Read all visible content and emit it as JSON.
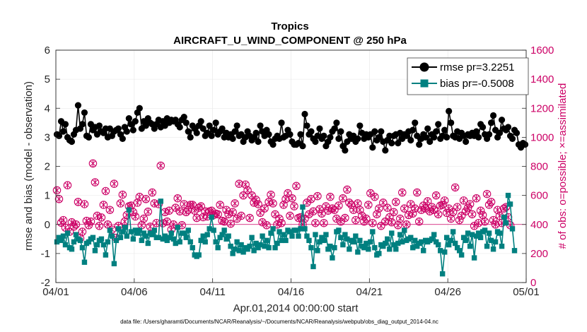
{
  "chart_data": {
    "type": "line",
    "title": "Tropics",
    "subtitle": "AIRCRAFT_U_WIND_COMPONENT @ 250 hPa",
    "xlabel": "Apr.01,2014 00:00:00 start",
    "ylabel_left": "rmse and bias (model - observation)",
    "ylabel_right": "# of obs: o=possible; ×=assimilated",
    "footnote": "data file: /Users/gharamti/Documents/NCAR/Reanalysis/~/Documents/NCAR/Reanalysis/webpub/obs_diag_output_2014-04.nc",
    "x_ticks": [
      "04/01",
      "04/06",
      "04/11",
      "04/16",
      "04/21",
      "04/26",
      "05/01"
    ],
    "x_range_days": [
      0,
      30
    ],
    "ylim_left": [
      -2,
      6
    ],
    "y_ticks_left": [
      "-2",
      "-1",
      "0",
      "1",
      "2",
      "3",
      "4",
      "5",
      "6"
    ],
    "ylim_right": [
      0,
      1600
    ],
    "y_ticks_right": [
      "0",
      "200",
      "400",
      "600",
      "800",
      "1000",
      "1200",
      "1400",
      "1600"
    ],
    "grid": true,
    "legend_position": "top-right",
    "colors": {
      "rmse": "#000000",
      "bias": "#008080",
      "obs": "#cc0066",
      "zero_line": "#cc0066"
    },
    "series": [
      {
        "name": "rmse",
        "legend": "rmse pr=3.2251",
        "values": [
          3.1,
          3.05,
          3.55,
          3.2,
          3.45,
          3.0,
          2.9,
          2.85,
          3.1,
          3.25,
          4.1,
          3.3,
          3.45,
          3.85,
          3.05,
          3.0,
          3.45,
          3.25,
          3.35,
          3.1,
          3.4,
          3.2,
          3.15,
          3.3,
          3.0,
          3.3,
          3.05,
          3.2,
          3.25,
          3.3,
          3.1,
          2.95,
          3.35,
          3.2,
          3.65,
          3.45,
          3.25,
          3.55,
          3.85,
          4.0,
          3.3,
          3.55,
          3.4,
          3.65,
          3.5,
          3.45,
          3.3,
          3.45,
          3.6,
          3.35,
          3.55,
          3.4,
          3.65,
          3.5,
          3.6,
          3.55,
          3.6,
          3.45,
          3.35,
          3.6,
          3.7,
          3.5,
          3.2,
          3.0,
          3.4,
          3.3,
          3.15,
          3.4,
          3.55,
          3.3,
          3.05,
          3.15,
          3.4,
          3.05,
          3.25,
          3.5,
          3.1,
          3.2,
          3.3,
          3.0,
          3.15,
          3.0,
          3.1,
          2.95,
          3.2,
          3.4,
          3.05,
          3.1,
          2.85,
          3.0,
          3.2,
          3.05,
          2.9,
          3.0,
          3.15,
          2.85,
          3.4,
          3.2,
          3.05,
          3.25,
          3.1,
          2.85,
          2.75,
          2.95,
          3.05,
          2.95,
          3.5,
          3.0,
          3.05,
          3.25,
          3.1,
          2.85,
          2.75,
          2.75,
          2.8,
          3.1,
          2.7,
          3.8,
          3.4,
          3.1,
          3.2,
          2.95,
          2.85,
          3.05,
          3.3,
          2.95,
          3.05,
          2.7,
          2.85,
          3.0,
          3.2,
          3.3,
          3.5,
          2.95,
          3.2,
          2.7,
          2.55,
          2.85,
          3.1,
          2.95,
          3.05,
          2.85,
          2.95,
          3.4,
          3.15,
          2.95,
          3.1,
          3.0,
          3.1,
          2.65,
          3.2,
          2.9,
          3.0,
          3.2,
          2.85,
          2.55,
          2.9,
          3.05,
          2.8,
          3.05,
          3.1,
          2.8,
          3.15,
          2.95,
          3.1,
          3.05,
          3.2,
          2.9,
          3.25,
          3.5,
          3.05,
          2.75,
          2.95,
          3.1,
          3.0,
          3.3,
          2.85,
          3.1,
          3.0,
          3.2,
          3.45,
          2.95,
          3.05,
          3.25,
          3.0,
          3.9,
          3.5,
          3.05,
          3.0,
          3.2,
          2.95,
          3.15,
          3.05,
          2.85,
          3.1,
          3.05,
          3.15,
          3.05,
          3.2,
          3.0,
          3.45,
          3.35,
          3.1,
          2.95,
          3.1,
          3.5,
          3.75,
          3.25,
          3.0,
          3.15,
          3.6,
          3.3,
          3.25,
          3.35,
          3.05,
          2.95,
          3.25,
          3.15,
          2.75,
          2.65,
          2.8,
          2.75
        ]
      },
      {
        "name": "bias",
        "legend": "bias pr=-0.5008",
        "values": [
          -0.6,
          -0.45,
          -0.55,
          -0.4,
          -0.7,
          -0.3,
          -0.8,
          -0.85,
          -0.6,
          -0.35,
          -0.5,
          -0.55,
          -0.8,
          -1.3,
          -0.65,
          -0.6,
          -0.5,
          -0.45,
          -0.9,
          -0.7,
          -0.55,
          -0.5,
          -0.7,
          -1.05,
          -0.6,
          -0.2,
          -0.4,
          -1.35,
          -0.55,
          -0.15,
          -0.45,
          -0.25,
          -0.1,
          -0.4,
          0.5,
          -0.25,
          -0.5,
          -0.2,
          -0.3,
          -0.2,
          -0.55,
          -0.3,
          -0.4,
          -0.65,
          -0.3,
          -0.35,
          -0.2,
          -0.45,
          -0.45,
          0.8,
          -0.5,
          -0.4,
          -0.55,
          -0.45,
          -0.3,
          -0.5,
          -0.65,
          -0.1,
          -0.6,
          -0.3,
          -0.3,
          -0.45,
          -0.2,
          -0.6,
          -0.8,
          -1.05,
          -1.1,
          -1.05,
          -0.55,
          -0.4,
          -0.6,
          -0.35,
          -0.15,
          0.25,
          -0.2,
          -0.6,
          -0.8,
          -0.45,
          -0.35,
          -0.2,
          -0.5,
          -0.4,
          -0.75,
          -1.0,
          -0.85,
          -0.6,
          -0.9,
          -0.7,
          -0.95,
          -0.8,
          -0.85,
          -0.75,
          -0.45,
          -0.9,
          -0.65,
          -0.8,
          -0.7,
          -0.4,
          -0.75,
          -0.55,
          -0.8,
          -0.3,
          -0.15,
          -0.8,
          -0.65,
          -0.25,
          -0.55,
          -0.35,
          -0.55,
          -0.2,
          -0.25,
          -0.4,
          -0.2,
          -0.2,
          -0.4,
          -0.15,
          0.6,
          -0.15,
          -0.4,
          -0.55,
          -0.8,
          -1.45,
          -0.35,
          -0.9,
          -0.6,
          -0.45,
          -0.55,
          -0.35,
          -0.85,
          -0.75,
          -1.15,
          -0.8,
          -0.25,
          -0.2,
          -0.45,
          -0.7,
          -0.35,
          -0.5,
          -0.85,
          -0.55,
          -0.6,
          -0.4,
          -0.95,
          -0.55,
          -0.75,
          -0.8,
          -0.65,
          -0.85,
          -0.6,
          -0.25,
          -0.8,
          -1.05,
          -1.0,
          -0.7,
          -0.75,
          -0.65,
          -0.5,
          -0.85,
          -0.3,
          -0.7,
          -0.85,
          -0.65,
          -0.35,
          -0.6,
          -0.2,
          -0.55,
          -0.5,
          -0.45,
          -0.8,
          -0.55,
          -0.75,
          -0.65,
          -0.6,
          -0.9,
          -0.55,
          -0.6,
          -0.55,
          -0.5,
          -0.35,
          -0.6,
          -0.7,
          -0.9,
          -1.7,
          -0.95,
          -0.45,
          -0.7,
          -0.55,
          -0.25,
          -0.65,
          -0.8,
          -0.9,
          -1.05,
          -0.45,
          -0.55,
          -0.3,
          -0.75,
          -0.35,
          -1.15,
          -0.4,
          -0.3,
          -0.45,
          -0.25,
          -0.2,
          -0.75,
          -0.3,
          -0.55,
          -0.85,
          -0.6,
          -0.25,
          -0.3,
          -0.75,
          0.25,
          0.05,
          1.0,
          0.7,
          -0.15,
          -0.9
        ]
      },
      {
        "name": "possible_obs",
        "axis": "right",
        "values": [
          635,
          575,
          412,
          430,
          378,
          670,
          350,
          415,
          385,
          400,
          555,
          305,
          350,
          540,
          425,
          395,
          420,
          820,
          690,
          460,
          390,
          448,
          535,
          630,
          400,
          500,
          365,
          680,
          308,
          390,
          545,
          605,
          420,
          465,
          525,
          530,
          485,
          455,
          550,
          590,
          395,
          440,
          575,
          488,
          385,
          620,
          545,
          410,
          540,
          805,
          408,
          485,
          420,
          495,
          365,
          400,
          515,
          580,
          490,
          395,
          540,
          485,
          500,
          535,
          535,
          495,
          445,
          515,
          525,
          450,
          490,
          455,
          490,
          495,
          465,
          475,
          470,
          535,
          425,
          420,
          500,
          470,
          405,
          485,
          545,
          440,
          680,
          460,
          600,
          675,
          635,
          445,
          600,
          550,
          570,
          540,
          480,
          415,
          510,
          395,
          555,
          605,
          545,
          470,
          400,
          440,
          410,
          535,
          575,
          615,
          460,
          580,
          525,
          665,
          445,
          450,
          400,
          440,
          550,
          470,
          575,
          490,
          410,
          595,
          505,
          475,
          410,
          525,
          495,
          590,
          510,
          500,
          440,
          530,
          420,
          580,
          445,
          640,
          550,
          535,
          500,
          430,
          545,
          500,
          460,
          420,
          440,
          535,
          615,
          410,
          590,
          470,
          510,
          390,
          550,
          420,
          515,
          450,
          415,
          485,
          555,
          395,
          440,
          620,
          510,
          400,
          465,
          540,
          475,
          510,
          620,
          420,
          500,
          530,
          510,
          560,
          490,
          520,
          500,
          600,
          470,
          530,
          535,
          565,
          480,
          510,
          440,
          485,
          655,
          520,
          430,
          460,
          565,
          490,
          515,
          540,
          470,
          390,
          580,
          410,
          495,
          465,
          420,
          610,
          535,
          555,
          430,
          400,
          500,
          460,
          410,
          510,
          520,
          450,
          395
        ]
      },
      {
        "name": "assimilated_obs",
        "axis": "right",
        "values": [
          635,
          575,
          412,
          430,
          378,
          670,
          350,
          415,
          385,
          400,
          555,
          305,
          350,
          540,
          425,
          395,
          420,
          820,
          690,
          460,
          390,
          448,
          535,
          630,
          400,
          500,
          365,
          680,
          308,
          390,
          545,
          605,
          420,
          465,
          525,
          530,
          485,
          455,
          550,
          590,
          395,
          440,
          575,
          488,
          385,
          620,
          545,
          410,
          540,
          805,
          408,
          485,
          420,
          495,
          365,
          400,
          515,
          580,
          490,
          395,
          540,
          485,
          500,
          535,
          535,
          495,
          445,
          515,
          525,
          450,
          490,
          455,
          490,
          495,
          465,
          475,
          470,
          535,
          425,
          420,
          500,
          470,
          405,
          485,
          545,
          440,
          680,
          460,
          600,
          675,
          635,
          445,
          600,
          550,
          570,
          540,
          480,
          415,
          510,
          395,
          555,
          605,
          545,
          470,
          400,
          440,
          410,
          535,
          575,
          615,
          460,
          580,
          525,
          665,
          445,
          450,
          400,
          440,
          550,
          470,
          575,
          490,
          410,
          595,
          505,
          475,
          410,
          525,
          495,
          590,
          510,
          500,
          440,
          530,
          420,
          580,
          445,
          640,
          550,
          535,
          500,
          430,
          545,
          500,
          460,
          420,
          440,
          535,
          615,
          410,
          590,
          470,
          510,
          390,
          550,
          420,
          515,
          450,
          415,
          485,
          555,
          395,
          440,
          620,
          510,
          400,
          465,
          540,
          475,
          510,
          620,
          420,
          500,
          530,
          510,
          560,
          490,
          520,
          500,
          600,
          470,
          530,
          535,
          565,
          480,
          510,
          440,
          485,
          655,
          520,
          430,
          460,
          565,
          490,
          515,
          540,
          470,
          390,
          580,
          410,
          495,
          465,
          420,
          610,
          535,
          555,
          430,
          400,
          500,
          460,
          410,
          510,
          520,
          450,
          395
        ]
      }
    ]
  }
}
